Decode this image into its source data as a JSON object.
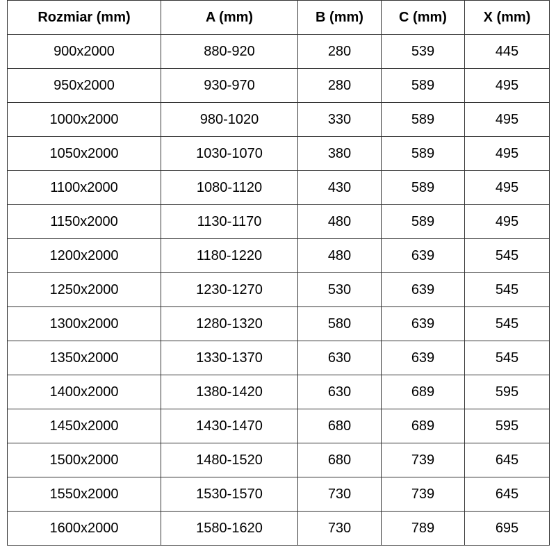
{
  "headers": [
    "Rozmiar (mm)",
    "A (mm)",
    "B (mm)",
    "C (mm)",
    "X (mm)"
  ],
  "rows": [
    [
      "900x2000",
      "880-920",
      "280",
      "539",
      "445"
    ],
    [
      "950x2000",
      "930-970",
      "280",
      "589",
      "495"
    ],
    [
      "1000x2000",
      "980-1020",
      "330",
      "589",
      "495"
    ],
    [
      "1050x2000",
      "1030-1070",
      "380",
      "589",
      "495"
    ],
    [
      "1100x2000",
      "1080-1120",
      "430",
      "589",
      "495"
    ],
    [
      "1150x2000",
      "1130-1170",
      "480",
      "589",
      "495"
    ],
    [
      "1200x2000",
      "1180-1220",
      "480",
      "639",
      "545"
    ],
    [
      "1250x2000",
      "1230-1270",
      "530",
      "639",
      "545"
    ],
    [
      "1300x2000",
      "1280-1320",
      "580",
      "639",
      "545"
    ],
    [
      "1350x2000",
      "1330-1370",
      "630",
      "639",
      "545"
    ],
    [
      "1400x2000",
      "1380-1420",
      "630",
      "689",
      "595"
    ],
    [
      "1450x2000",
      "1430-1470",
      "680",
      "689",
      "595"
    ],
    [
      "1500x2000",
      "1480-1520",
      "680",
      "739",
      "645"
    ],
    [
      "1550x2000",
      "1530-1570",
      "730",
      "739",
      "645"
    ],
    [
      "1600x2000",
      "1580-1620",
      "730",
      "789",
      "695"
    ]
  ]
}
